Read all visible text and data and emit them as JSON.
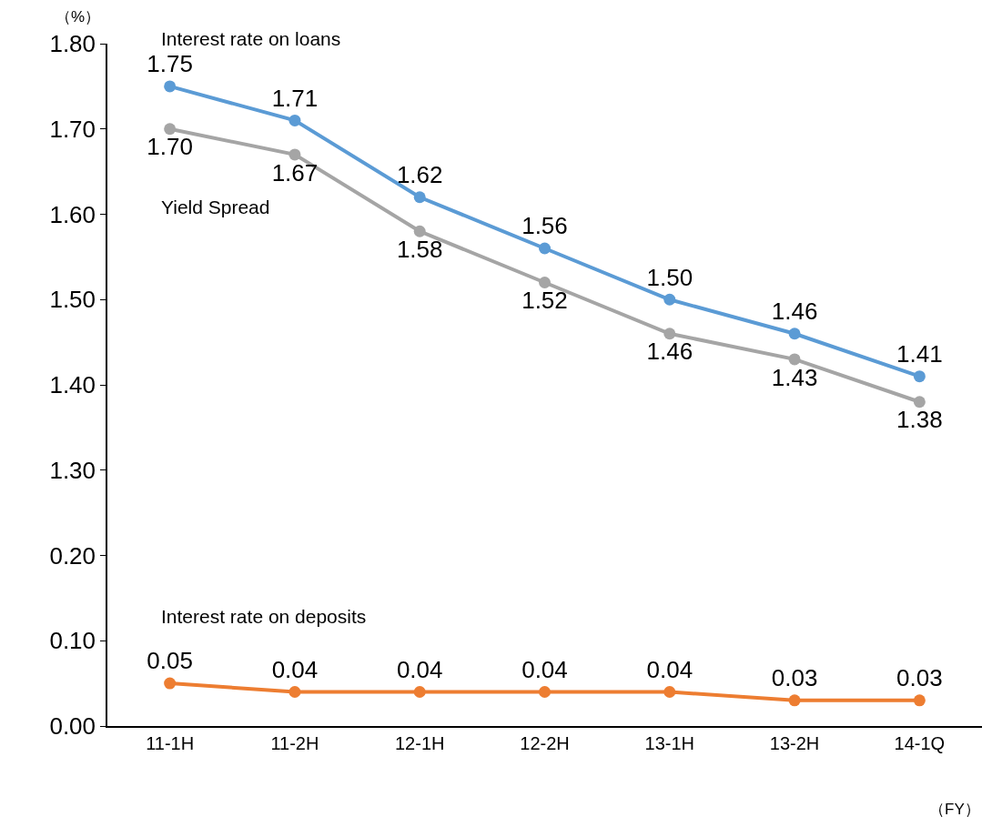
{
  "chart_data": [
    {
      "type": "line",
      "categories": [
        "11-1H",
        "11-2H",
        "12-1H",
        "12-2H",
        "13-1H",
        "13-2H",
        "14-1Q"
      ],
      "tick_labels": "y",
      "marker": "circle",
      "grid": false,
      "legend": false,
      "ylim": [
        1.24,
        1.8
      ],
      "yticks": [
        {
          "value": 1.3,
          "label": "1.30"
        },
        {
          "value": 1.4,
          "label": "1.40"
        },
        {
          "value": 1.5,
          "label": "1.50"
        },
        {
          "value": 1.6,
          "label": "1.60"
        },
        {
          "value": 1.7,
          "label": "1.70"
        },
        {
          "value": 1.8,
          "label": "1.80"
        }
      ],
      "annotations": [
        "（%）"
      ],
      "series": [
        {
          "name": "Interest rate on loans",
          "color": "#5b9bd5",
          "values": [
            1.75,
            1.71,
            1.62,
            1.56,
            1.5,
            1.46,
            1.41
          ],
          "value_labels": [
            "1.75",
            "1.71",
            "1.62",
            "1.56",
            "1.50",
            "1.46",
            "1.41"
          ]
        },
        {
          "name": "Yield Spread",
          "color": "#a5a5a5",
          "values": [
            1.7,
            1.67,
            1.58,
            1.52,
            1.46,
            1.43,
            1.38
          ],
          "value_labels": [
            "1.70",
            "1.67",
            "1.58",
            "1.52",
            "1.46",
            "1.43",
            "1.38"
          ]
        }
      ]
    },
    {
      "type": "line",
      "categories": [
        "11-1H",
        "11-2H",
        "12-1H",
        "12-2H",
        "13-1H",
        "13-2H",
        "14-1Q"
      ],
      "marker": "circle",
      "grid": false,
      "legend": false,
      "ylim": [
        0,
        0.24
      ],
      "yticks": [
        {
          "value": 0,
          "label": "0.00"
        },
        {
          "value": 0.1,
          "label": "0.10"
        },
        {
          "value": 0.2,
          "label": "0.20"
        }
      ],
      "annotations": [
        "（FY）"
      ],
      "series": [
        {
          "name": "Interest rate on deposits",
          "color": "#ed7d31",
          "values": [
            0.05,
            0.04,
            0.04,
            0.04,
            0.04,
            0.03,
            0.03
          ],
          "value_labels": [
            "0.05",
            "0.04",
            "0.04",
            "0.04",
            "0.04",
            "0.03",
            "0.03"
          ]
        }
      ]
    }
  ]
}
